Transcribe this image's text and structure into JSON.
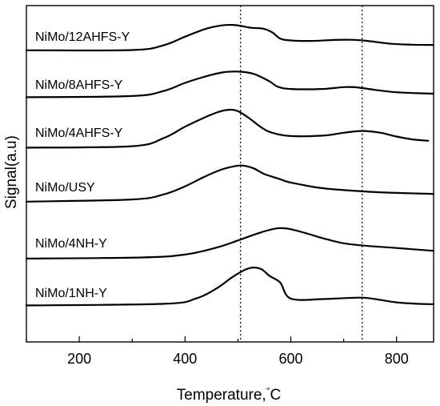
{
  "chart_data": {
    "type": "line",
    "xlabel": "Temperature,",
    "xlabel_unit": "°C",
    "ylabel": "Signal(a.u)",
    "xlim": [
      100,
      870
    ],
    "xticks_major": [
      200,
      400,
      600,
      800
    ],
    "xticks_minor": [
      100,
      300,
      500,
      700
    ],
    "y_ticks": "none",
    "grid": false,
    "reference_lines_x": [
      505,
      735
    ],
    "series": [
      {
        "name": "NiMo/12AHFS-Y",
        "points": [
          [
            100,
            0.72
          ],
          [
            300,
            0.76
          ],
          [
            360,
            1.8
          ],
          [
            400,
            3.6
          ],
          [
            440,
            5.3
          ],
          [
            470,
            6.0
          ],
          [
            490,
            6.1
          ],
          [
            505,
            5.9
          ],
          [
            525,
            5.5
          ],
          [
            548,
            5.3
          ],
          [
            565,
            4.5
          ],
          [
            580,
            3.2
          ],
          [
            600,
            2.8
          ],
          [
            640,
            2.7
          ],
          [
            680,
            2.9
          ],
          [
            715,
            2.95
          ],
          [
            745,
            2.7
          ],
          [
            790,
            2.1
          ],
          [
            830,
            1.9
          ],
          [
            870,
            1.85
          ]
        ]
      },
      {
        "name": "NiMo/8AHFS-Y",
        "points": [
          [
            100,
            0.95
          ],
          [
            300,
            1.2
          ],
          [
            360,
            2.3
          ],
          [
            400,
            4.0
          ],
          [
            440,
            5.4
          ],
          [
            470,
            6.2
          ],
          [
            500,
            6.4
          ],
          [
            530,
            5.9
          ],
          [
            560,
            4.3
          ],
          [
            575,
            3.2
          ],
          [
            600,
            2.7
          ],
          [
            660,
            2.7
          ],
          [
            700,
            3.1
          ],
          [
            725,
            3.05
          ],
          [
            760,
            2.5
          ],
          [
            800,
            2.0
          ],
          [
            840,
            1.8
          ],
          [
            870,
            1.7
          ]
        ]
      },
      {
        "name": "NiMo/4AHFS-Y",
        "points": [
          [
            100,
            0.45
          ],
          [
            300,
            0.75
          ],
          [
            360,
            2.5
          ],
          [
            400,
            4.9
          ],
          [
            440,
            7.0
          ],
          [
            465,
            8.1
          ],
          [
            485,
            8.5
          ],
          [
            500,
            8.2
          ],
          [
            520,
            6.8
          ],
          [
            545,
            4.7
          ],
          [
            565,
            3.6
          ],
          [
            600,
            2.9
          ],
          [
            660,
            3.0
          ],
          [
            700,
            3.6
          ],
          [
            735,
            4.0
          ],
          [
            770,
            3.6
          ],
          [
            800,
            2.8
          ],
          [
            830,
            2.2
          ],
          [
            860,
            1.9
          ]
        ]
      },
      {
        "name": "NiMo/USY",
        "points": [
          [
            100,
            0.55
          ],
          [
            300,
            1.0
          ],
          [
            360,
            2.1
          ],
          [
            400,
            3.8
          ],
          [
            440,
            6.0
          ],
          [
            470,
            7.4
          ],
          [
            495,
            8.1
          ],
          [
            510,
            8.2
          ],
          [
            530,
            7.6
          ],
          [
            550,
            6.4
          ],
          [
            580,
            5.3
          ],
          [
            600,
            4.6
          ],
          [
            660,
            3.4
          ],
          [
            740,
            2.7
          ],
          [
            800,
            2.4
          ],
          [
            870,
            2.2
          ]
        ]
      },
      {
        "name": "NiMo/4NH-Y",
        "points": [
          [
            100,
            0.35
          ],
          [
            320,
            0.6
          ],
          [
            400,
            1.2
          ],
          [
            460,
            2.7
          ],
          [
            500,
            4.2
          ],
          [
            540,
            5.8
          ],
          [
            570,
            6.7
          ],
          [
            585,
            6.8
          ],
          [
            600,
            6.6
          ],
          [
            630,
            5.7
          ],
          [
            660,
            4.7
          ],
          [
            700,
            3.6
          ],
          [
            740,
            3.1
          ],
          [
            800,
            2.6
          ],
          [
            870,
            2.0
          ]
        ]
      },
      {
        "name": "NiMo/1NH-Y",
        "points": [
          [
            100,
            0.95
          ],
          [
            360,
            1.3
          ],
          [
            420,
            2.4
          ],
          [
            460,
            4.6
          ],
          [
            490,
            7.0
          ],
          [
            515,
            8.6
          ],
          [
            530,
            9.0
          ],
          [
            545,
            8.6
          ],
          [
            560,
            7.2
          ],
          [
            580,
            5.8
          ],
          [
            600,
            2.4
          ],
          [
            660,
            2.3
          ],
          [
            700,
            2.5
          ],
          [
            735,
            2.6
          ],
          [
            760,
            2.3
          ],
          [
            800,
            1.6
          ],
          [
            840,
            1.3
          ],
          [
            870,
            1.2
          ]
        ]
      }
    ]
  }
}
